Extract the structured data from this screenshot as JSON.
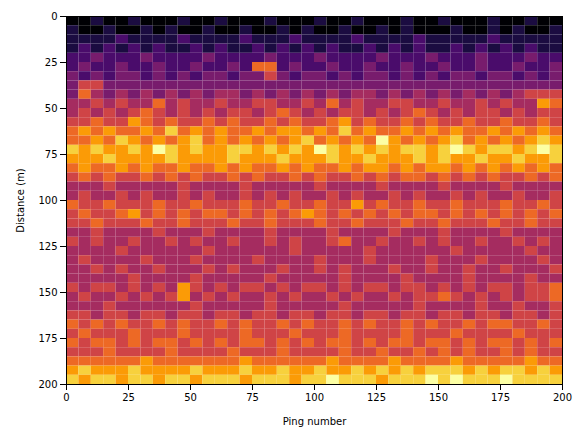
{
  "chart_data": {
    "type": "heatmap",
    "x_label": "Ping number",
    "y_label": "Distance (m)",
    "xlim": [
      0,
      200
    ],
    "ylim": [
      200,
      0
    ],
    "xticks": [
      0,
      25,
      50,
      75,
      100,
      125,
      150,
      175,
      200
    ],
    "yticks": [
      0,
      25,
      50,
      75,
      100,
      125,
      150,
      175,
      200
    ],
    "color": "inferno",
    "x_bins": [
      0,
      5,
      10,
      15,
      20,
      25,
      30,
      35,
      40,
      45,
      50,
      55,
      60,
      65,
      70,
      75,
      80,
      85,
      90,
      95,
      100,
      105,
      110,
      115,
      120,
      125,
      130,
      135,
      140,
      145,
      150,
      155,
      160,
      165,
      170,
      175,
      180,
      185,
      190,
      195,
      200
    ],
    "y_bins": [
      0,
      5,
      10,
      15,
      20,
      25,
      30,
      35,
      40,
      45,
      50,
      55,
      60,
      65,
      70,
      75,
      80,
      85,
      90,
      95,
      100,
      105,
      110,
      115,
      120,
      125,
      130,
      135,
      140,
      145,
      150,
      155,
      160,
      165,
      170,
      175,
      180,
      185,
      190,
      195,
      200
    ],
    "cells": [
      [
        0,
        0,
        1,
        0,
        0,
        1,
        0,
        0,
        0,
        1,
        0,
        0,
        1,
        0,
        0,
        0,
        1,
        0,
        0,
        0,
        1,
        0,
        0,
        1,
        0,
        0,
        0,
        1,
        0,
        0,
        1,
        0,
        0,
        0,
        1,
        0,
        0,
        1,
        0,
        0
      ],
      [
        1,
        0,
        0,
        1,
        0,
        0,
        1,
        0,
        1,
        0,
        0,
        1,
        0,
        0,
        1,
        0,
        0,
        1,
        0,
        1,
        0,
        0,
        1,
        0,
        0,
        1,
        0,
        1,
        0,
        0,
        0,
        1,
        0,
        0,
        1,
        0,
        1,
        0,
        0,
        1
      ],
      [
        1,
        1,
        1,
        1,
        2,
        1,
        1,
        1,
        1,
        2,
        1,
        1,
        1,
        1,
        2,
        1,
        1,
        1,
        2,
        1,
        1,
        1,
        1,
        2,
        1,
        1,
        1,
        1,
        2,
        1,
        1,
        1,
        1,
        1,
        2,
        1,
        1,
        1,
        1,
        1
      ],
      [
        1,
        2,
        1,
        2,
        1,
        2,
        1,
        2,
        1,
        1,
        2,
        1,
        2,
        1,
        1,
        2,
        1,
        2,
        1,
        2,
        1,
        2,
        1,
        1,
        2,
        1,
        2,
        1,
        2,
        1,
        1,
        2,
        1,
        2,
        1,
        2,
        1,
        2,
        1,
        1
      ],
      [
        2,
        2,
        3,
        2,
        2,
        2,
        3,
        2,
        2,
        2,
        2,
        3,
        2,
        2,
        2,
        2,
        3,
        2,
        2,
        2,
        3,
        2,
        2,
        2,
        2,
        3,
        2,
        2,
        2,
        3,
        2,
        2,
        2,
        3,
        2,
        2,
        2,
        3,
        2,
        2
      ],
      [
        2,
        3,
        2,
        2,
        3,
        2,
        2,
        3,
        2,
        2,
        3,
        2,
        2,
        3,
        2,
        6,
        6,
        2,
        3,
        2,
        2,
        3,
        2,
        2,
        3,
        2,
        2,
        3,
        2,
        2,
        3,
        2,
        2,
        3,
        2,
        2,
        3,
        2,
        2,
        3
      ],
      [
        3,
        2,
        3,
        2,
        3,
        3,
        2,
        3,
        2,
        3,
        2,
        3,
        3,
        2,
        3,
        3,
        5,
        3,
        2,
        3,
        3,
        2,
        3,
        2,
        3,
        3,
        2,
        3,
        2,
        3,
        2,
        3,
        3,
        2,
        3,
        3,
        2,
        3,
        2,
        3
      ],
      [
        3,
        5,
        5,
        3,
        3,
        3,
        3,
        3,
        3,
        3,
        3,
        3,
        3,
        3,
        3,
        3,
        3,
        3,
        3,
        3,
        3,
        3,
        3,
        3,
        3,
        3,
        3,
        3,
        3,
        3,
        3,
        3,
        3,
        3,
        3,
        3,
        3,
        3,
        3,
        3
      ],
      [
        3,
        6,
        4,
        3,
        4,
        3,
        4,
        3,
        4,
        3,
        4,
        3,
        4,
        4,
        3,
        4,
        3,
        4,
        3,
        4,
        3,
        4,
        3,
        4,
        4,
        3,
        4,
        3,
        4,
        3,
        4,
        3,
        4,
        3,
        4,
        3,
        4,
        5,
        5,
        5
      ],
      [
        4,
        4,
        5,
        4,
        5,
        4,
        4,
        6,
        4,
        5,
        4,
        4,
        5,
        4,
        4,
        5,
        5,
        4,
        4,
        5,
        4,
        6,
        4,
        5,
        4,
        4,
        5,
        5,
        4,
        4,
        5,
        4,
        4,
        5,
        4,
        5,
        4,
        4,
        7,
        6
      ],
      [
        4,
        5,
        4,
        5,
        4,
        5,
        6,
        5,
        4,
        5,
        4,
        5,
        4,
        5,
        5,
        4,
        5,
        6,
        5,
        4,
        5,
        4,
        5,
        5,
        4,
        5,
        4,
        5,
        6,
        5,
        4,
        5,
        4,
        5,
        5,
        4,
        5,
        4,
        5,
        5
      ],
      [
        5,
        5,
        6,
        5,
        5,
        7,
        6,
        5,
        6,
        5,
        5,
        6,
        5,
        6,
        5,
        5,
        6,
        5,
        6,
        5,
        5,
        6,
        7,
        5,
        6,
        5,
        5,
        6,
        5,
        6,
        5,
        5,
        6,
        5,
        5,
        6,
        5,
        5,
        6,
        5
      ],
      [
        6,
        7,
        6,
        7,
        6,
        6,
        7,
        6,
        8,
        6,
        7,
        6,
        7,
        6,
        6,
        7,
        6,
        7,
        7,
        6,
        7,
        6,
        8,
        6,
        7,
        6,
        6,
        7,
        6,
        7,
        6,
        7,
        6,
        6,
        7,
        6,
        7,
        6,
        7,
        6
      ],
      [
        6,
        6,
        7,
        6,
        8,
        7,
        6,
        7,
        6,
        7,
        8,
        6,
        7,
        6,
        7,
        6,
        7,
        6,
        7,
        8,
        6,
        7,
        6,
        7,
        6,
        9,
        7,
        6,
        7,
        6,
        7,
        8,
        6,
        7,
        6,
        7,
        6,
        7,
        8,
        7
      ],
      [
        8,
        7,
        8,
        7,
        7,
        8,
        7,
        9,
        8,
        7,
        8,
        7,
        7,
        8,
        8,
        7,
        8,
        7,
        8,
        7,
        9,
        8,
        7,
        8,
        7,
        8,
        7,
        8,
        8,
        7,
        8,
        9,
        8,
        7,
        8,
        8,
        7,
        8,
        9,
        8
      ],
      [
        7,
        7,
        7,
        8,
        7,
        7,
        7,
        7,
        8,
        7,
        7,
        7,
        7,
        8,
        7,
        7,
        7,
        8,
        7,
        7,
        7,
        8,
        7,
        7,
        8,
        7,
        7,
        7,
        8,
        7,
        8,
        7,
        7,
        8,
        7,
        7,
        8,
        7,
        7,
        8
      ],
      [
        6,
        7,
        6,
        6,
        7,
        6,
        7,
        6,
        6,
        7,
        6,
        6,
        7,
        6,
        7,
        6,
        6,
        7,
        6,
        7,
        6,
        6,
        7,
        6,
        7,
        7,
        6,
        7,
        6,
        7,
        7,
        6,
        7,
        6,
        7,
        6,
        7,
        6,
        7,
        6
      ],
      [
        5,
        6,
        5,
        6,
        5,
        5,
        6,
        5,
        6,
        5,
        6,
        5,
        5,
        6,
        5,
        6,
        5,
        5,
        6,
        5,
        6,
        5,
        5,
        6,
        5,
        6,
        5,
        6,
        6,
        5,
        6,
        5,
        6,
        5,
        6,
        5,
        5,
        6,
        5,
        6
      ],
      [
        4,
        4,
        4,
        5,
        4,
        4,
        4,
        4,
        4,
        5,
        4,
        4,
        4,
        4,
        5,
        4,
        4,
        4,
        4,
        4,
        5,
        4,
        4,
        4,
        4,
        5,
        4,
        4,
        4,
        4,
        5,
        4,
        4,
        4,
        4,
        5,
        4,
        4,
        4,
        4
      ],
      [
        4,
        5,
        4,
        4,
        5,
        4,
        5,
        4,
        4,
        5,
        4,
        5,
        4,
        4,
        5,
        4,
        5,
        4,
        5,
        4,
        4,
        5,
        4,
        5,
        4,
        4,
        5,
        4,
        5,
        4,
        4,
        5,
        4,
        5,
        4,
        4,
        5,
        4,
        4,
        5
      ],
      [
        6,
        5,
        5,
        6,
        5,
        5,
        5,
        6,
        5,
        5,
        6,
        5,
        5,
        5,
        6,
        5,
        5,
        6,
        5,
        5,
        6,
        5,
        5,
        7,
        5,
        6,
        5,
        5,
        6,
        5,
        5,
        6,
        5,
        5,
        5,
        6,
        5,
        5,
        6,
        5
      ],
      [
        5,
        6,
        5,
        5,
        6,
        7,
        5,
        6,
        5,
        6,
        5,
        6,
        6,
        5,
        6,
        5,
        6,
        5,
        6,
        7,
        6,
        5,
        6,
        5,
        6,
        5,
        6,
        5,
        6,
        6,
        5,
        6,
        5,
        6,
        5,
        6,
        5,
        6,
        5,
        6
      ],
      [
        5,
        5,
        6,
        5,
        5,
        5,
        6,
        5,
        5,
        6,
        5,
        5,
        5,
        6,
        5,
        5,
        6,
        5,
        5,
        5,
        6,
        5,
        5,
        6,
        5,
        5,
        5,
        6,
        5,
        5,
        6,
        5,
        5,
        5,
        6,
        5,
        5,
        6,
        5,
        5
      ],
      [
        4,
        4,
        5,
        4,
        4,
        4,
        4,
        5,
        4,
        4,
        4,
        5,
        4,
        4,
        4,
        4,
        5,
        4,
        4,
        4,
        4,
        5,
        4,
        4,
        4,
        4,
        5,
        4,
        4,
        4,
        5,
        4,
        4,
        4,
        4,
        5,
        4,
        4,
        4,
        4
      ],
      [
        5,
        4,
        5,
        4,
        4,
        5,
        4,
        4,
        5,
        4,
        5,
        4,
        4,
        5,
        4,
        4,
        5,
        4,
        5,
        4,
        4,
        5,
        6,
        4,
        4,
        5,
        4,
        4,
        5,
        4,
        5,
        4,
        4,
        5,
        4,
        4,
        5,
        4,
        5,
        4
      ],
      [
        4,
        4,
        4,
        4,
        5,
        4,
        4,
        4,
        4,
        4,
        4,
        5,
        4,
        4,
        4,
        4,
        4,
        4,
        5,
        4,
        4,
        4,
        4,
        4,
        5,
        4,
        4,
        4,
        4,
        4,
        4,
        5,
        4,
        4,
        4,
        4,
        4,
        5,
        4,
        4
      ],
      [
        4,
        5,
        4,
        4,
        4,
        4,
        5,
        4,
        4,
        4,
        5,
        4,
        4,
        4,
        4,
        5,
        4,
        4,
        4,
        4,
        5,
        4,
        4,
        4,
        5,
        4,
        4,
        4,
        4,
        5,
        4,
        4,
        4,
        5,
        4,
        4,
        4,
        4,
        5,
        4
      ],
      [
        4,
        4,
        5,
        4,
        5,
        4,
        4,
        5,
        4,
        4,
        4,
        5,
        4,
        5,
        4,
        4,
        4,
        5,
        4,
        4,
        5,
        4,
        5,
        4,
        4,
        4,
        5,
        4,
        4,
        5,
        4,
        4,
        5,
        4,
        4,
        5,
        4,
        4,
        4,
        5
      ],
      [
        4,
        4,
        4,
        4,
        4,
        5,
        4,
        4,
        4,
        4,
        5,
        4,
        4,
        4,
        4,
        4,
        5,
        4,
        4,
        4,
        4,
        4,
        5,
        4,
        4,
        4,
        4,
        5,
        4,
        4,
        4,
        4,
        5,
        4,
        4,
        4,
        4,
        5,
        4,
        4
      ],
      [
        5,
        4,
        5,
        5,
        4,
        5,
        4,
        5,
        4,
        7,
        5,
        4,
        5,
        4,
        5,
        5,
        4,
        5,
        4,
        5,
        5,
        4,
        5,
        4,
        5,
        5,
        4,
        5,
        5,
        4,
        5,
        4,
        5,
        4,
        5,
        5,
        4,
        5,
        5,
        6
      ],
      [
        4,
        5,
        4,
        4,
        5,
        4,
        5,
        4,
        5,
        7,
        4,
        5,
        4,
        5,
        4,
        4,
        5,
        4,
        5,
        4,
        4,
        5,
        4,
        5,
        4,
        4,
        5,
        4,
        5,
        5,
        6,
        5,
        4,
        5,
        4,
        5,
        4,
        5,
        5,
        6
      ],
      [
        4,
        4,
        4,
        5,
        4,
        4,
        4,
        4,
        4,
        4,
        5,
        4,
        4,
        4,
        4,
        4,
        5,
        4,
        4,
        4,
        4,
        4,
        5,
        4,
        4,
        4,
        4,
        4,
        5,
        4,
        4,
        4,
        4,
        5,
        4,
        4,
        5,
        4,
        4,
        5
      ],
      [
        5,
        5,
        4,
        5,
        5,
        4,
        5,
        5,
        4,
        5,
        5,
        4,
        5,
        5,
        4,
        5,
        5,
        4,
        5,
        5,
        4,
        5,
        5,
        4,
        5,
        5,
        4,
        5,
        5,
        4,
        5,
        5,
        4,
        5,
        5,
        4,
        5,
        5,
        4,
        5
      ],
      [
        6,
        5,
        6,
        5,
        6,
        5,
        5,
        6,
        5,
        6,
        5,
        5,
        6,
        5,
        6,
        5,
        5,
        6,
        5,
        6,
        5,
        5,
        6,
        5,
        6,
        5,
        5,
        6,
        5,
        6,
        5,
        5,
        6,
        5,
        6,
        6,
        5,
        5,
        6,
        5
      ],
      [
        5,
        6,
        5,
        5,
        5,
        6,
        5,
        5,
        5,
        6,
        5,
        5,
        5,
        5,
        6,
        5,
        5,
        5,
        6,
        5,
        5,
        5,
        6,
        5,
        5,
        5,
        5,
        6,
        5,
        5,
        5,
        6,
        5,
        5,
        5,
        5,
        6,
        5,
        5,
        5
      ],
      [
        6,
        5,
        6,
        6,
        5,
        6,
        5,
        6,
        6,
        5,
        6,
        5,
        6,
        5,
        6,
        6,
        5,
        6,
        5,
        6,
        5,
        6,
        6,
        5,
        6,
        5,
        6,
        6,
        5,
        6,
        6,
        5,
        6,
        5,
        6,
        6,
        5,
        6,
        5,
        6
      ],
      [
        5,
        5,
        5,
        6,
        5,
        5,
        5,
        5,
        6,
        5,
        5,
        5,
        5,
        6,
        5,
        5,
        5,
        6,
        5,
        5,
        5,
        5,
        6,
        5,
        5,
        6,
        5,
        5,
        6,
        5,
        6,
        5,
        6,
        5,
        5,
        6,
        5,
        6,
        5,
        5
      ],
      [
        6,
        6,
        6,
        6,
        6,
        6,
        7,
        6,
        6,
        6,
        6,
        6,
        6,
        6,
        7,
        6,
        6,
        6,
        6,
        6,
        6,
        7,
        6,
        6,
        6,
        6,
        7,
        6,
        6,
        6,
        6,
        7,
        6,
        6,
        6,
        6,
        6,
        7,
        6,
        6
      ],
      [
        7,
        8,
        7,
        7,
        7,
        8,
        7,
        7,
        7,
        7,
        8,
        7,
        7,
        7,
        8,
        7,
        7,
        8,
        7,
        7,
        8,
        7,
        7,
        8,
        7,
        8,
        7,
        8,
        7,
        8,
        8,
        8,
        7,
        8,
        7,
        8,
        8,
        7,
        8,
        7
      ],
      [
        8,
        7,
        8,
        8,
        7,
        8,
        8,
        7,
        8,
        8,
        7,
        8,
        8,
        8,
        7,
        8,
        8,
        8,
        7,
        8,
        8,
        9,
        8,
        8,
        8,
        7,
        8,
        8,
        8,
        9,
        8,
        9,
        8,
        8,
        8,
        9,
        8,
        8,
        8,
        8
      ]
    ]
  }
}
